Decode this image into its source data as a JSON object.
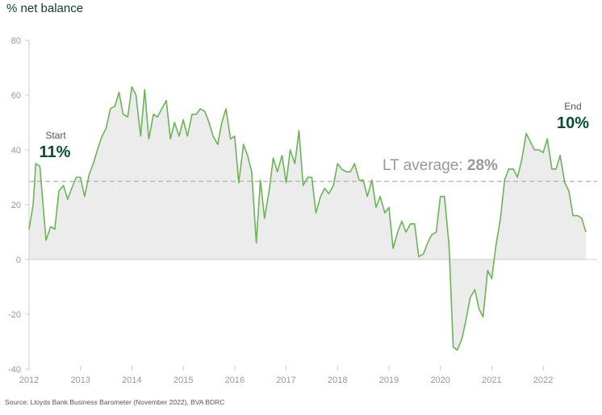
{
  "chart_data": {
    "type": "area",
    "ylabel": "% net balance",
    "source": "Source: Lloyds Bank Business Barometer (November 2022), BVA BDRC",
    "ylim": [
      -40,
      80
    ],
    "yticks": [
      "80",
      "60",
      "40",
      "20",
      "0",
      "-20",
      "-40"
    ],
    "xlim": [
      2012,
      2023.05
    ],
    "xticks": [
      "2012",
      "2013",
      "2014",
      "2015",
      "2016",
      "2017",
      "2018",
      "2019",
      "2020",
      "2021",
      "2022"
    ],
    "grid": false,
    "colors": {
      "line": "#6ab456",
      "fill": "#ececec",
      "axis": "#cccccc",
      "average": "#b0b0b0",
      "emphasis": "#0a4d2c"
    },
    "average": {
      "value": 28.5,
      "label_text": "LT average:",
      "value_text": "28%"
    },
    "annotations": {
      "start": {
        "label": "Start",
        "value": "11%"
      },
      "end": {
        "label": "End",
        "value": "10%"
      }
    },
    "series": [
      {
        "x": [
          2012.0,
          2012.08,
          2012.13,
          2012.21,
          2012.33,
          2012.42,
          2012.5,
          2012.58,
          2012.67,
          2012.75,
          2012.83,
          2012.92,
          2013.0,
          2013.08,
          2013.17,
          2013.25,
          2013.33,
          2013.42,
          2013.5,
          2013.58,
          2013.67,
          2013.75,
          2013.83,
          2013.92,
          2014.0,
          2014.08,
          2014.17,
          2014.25,
          2014.33,
          2014.42,
          2014.5,
          2014.58,
          2014.67,
          2014.75,
          2014.83,
          2014.92,
          2015.0,
          2015.08,
          2015.17,
          2015.25,
          2015.33,
          2015.42,
          2015.5,
          2015.58,
          2015.67,
          2015.75,
          2015.83,
          2015.92,
          2016.0,
          2016.08,
          2016.17,
          2016.25,
          2016.33,
          2016.42,
          2016.5,
          2016.58,
          2016.67,
          2016.75,
          2016.83,
          2016.92,
          2017.0,
          2017.08,
          2017.17,
          2017.25,
          2017.33,
          2017.42,
          2017.5,
          2017.58,
          2017.67,
          2017.75,
          2017.83,
          2017.92,
          2018.0,
          2018.08,
          2018.17,
          2018.25,
          2018.33,
          2018.42,
          2018.5,
          2018.58,
          2018.67,
          2018.75,
          2018.83,
          2018.92,
          2019.0,
          2019.08,
          2019.17,
          2019.25,
          2019.33,
          2019.42,
          2019.5,
          2019.58,
          2019.67,
          2019.75,
          2019.83,
          2019.92,
          2020.0,
          2020.08,
          2020.17,
          2020.25,
          2020.33,
          2020.42,
          2020.5,
          2020.58,
          2020.67,
          2020.75,
          2020.83,
          2020.92,
          2021.0,
          2021.08,
          2021.17,
          2021.25,
          2021.33,
          2021.42,
          2021.5,
          2021.58,
          2021.67,
          2021.75,
          2021.83,
          2021.92,
          2022.0,
          2022.08,
          2022.17,
          2022.25,
          2022.33,
          2022.42,
          2022.5,
          2022.58,
          2022.67,
          2022.75,
          2022.83
        ],
        "values": [
          11,
          20,
          35,
          34,
          7,
          12,
          11,
          25,
          27,
          22,
          26,
          30,
          30,
          23,
          31,
          35,
          40,
          45,
          48,
          55,
          56,
          61,
          53,
          52,
          63,
          60,
          45,
          62,
          44,
          53,
          52,
          55,
          58,
          44,
          50,
          45,
          51,
          45,
          53,
          53,
          55,
          54,
          50,
          45,
          42,
          50,
          55,
          44,
          45,
          28,
          42,
          38,
          32,
          6,
          29,
          15,
          25,
          37,
          32,
          38,
          28,
          40,
          35,
          47,
          27,
          30,
          30,
          17,
          23,
          26,
          24,
          27,
          35,
          33,
          32,
          32,
          35,
          29,
          29,
          23,
          29,
          19,
          23,
          17,
          19,
          4,
          10,
          14,
          10,
          13,
          13,
          1,
          2,
          6,
          9,
          10,
          23,
          23,
          5,
          -32,
          -33,
          -29,
          -22,
          -14,
          -11,
          -18,
          -21,
          -4,
          -7,
          5,
          15,
          29,
          33,
          33,
          30,
          36,
          46,
          43,
          40,
          40,
          39,
          44,
          33,
          33,
          38,
          28,
          25,
          16,
          16,
          15,
          10
        ]
      }
    ]
  }
}
